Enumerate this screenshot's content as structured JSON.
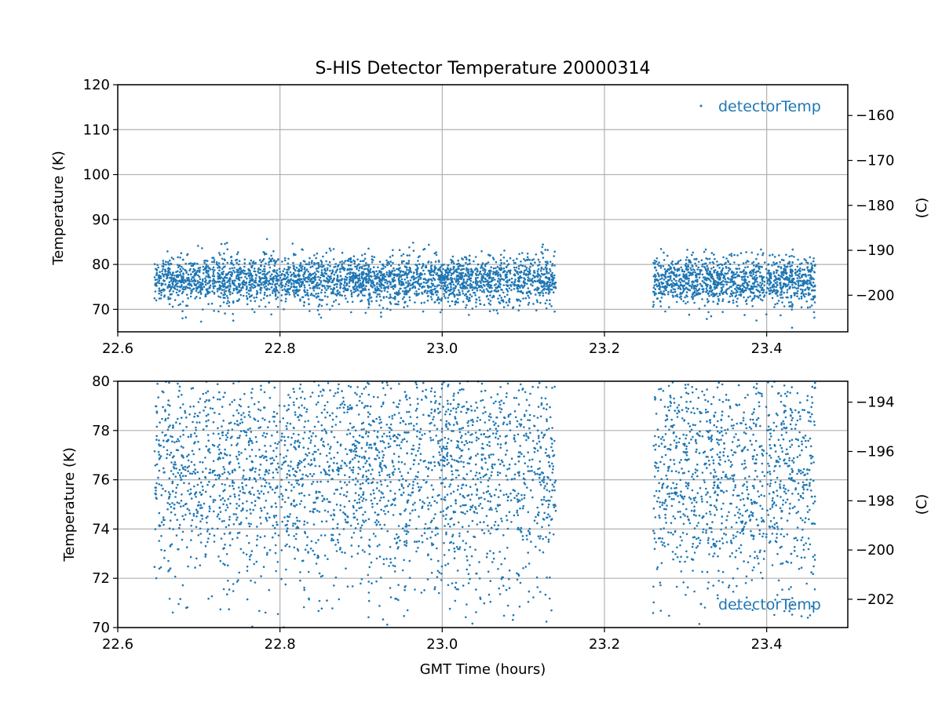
{
  "chart_data": {
    "type": "scatter",
    "title": "S-HIS Detector Temperature 20000314",
    "xlabel": "GMT Time (hours)",
    "color": "#1f77b4",
    "series_name": "detectorTemp",
    "segments": [
      {
        "x_start": 22.645,
        "x_end": 23.14,
        "points": 3000,
        "mean": 76.5,
        "sd": 2.7
      },
      {
        "x_start": 23.26,
        "x_end": 23.46,
        "points": 1250,
        "mean": 76.3,
        "sd": 2.6
      }
    ],
    "panels": [
      {
        "ylabel": "Temperature (K)",
        "y2label": "(C)",
        "xlim": [
          22.6,
          23.5
        ],
        "ylim": [
          65,
          120
        ],
        "xticks": [
          "22.6",
          "22.8",
          "23.0",
          "23.2",
          "23.4"
        ],
        "yticks": [
          "70",
          "80",
          "90",
          "100",
          "110",
          "120"
        ],
        "y2ticks": [
          "−200",
          "−190",
          "−180",
          "−170",
          "−160"
        ],
        "legend": "top-right",
        "grid": true
      },
      {
        "ylabel": "Temperature (K)",
        "y2label": "(C)",
        "xlim": [
          22.6,
          23.5
        ],
        "ylim": [
          70,
          80
        ],
        "xticks": [
          "22.6",
          "22.8",
          "23.0",
          "23.2",
          "23.4"
        ],
        "yticks": [
          "70",
          "72",
          "74",
          "76",
          "78",
          "80"
        ],
        "y2ticks": [
          "−202",
          "−200",
          "−198",
          "−196",
          "−194"
        ],
        "legend": "bottom-right",
        "grid": true
      }
    ]
  }
}
